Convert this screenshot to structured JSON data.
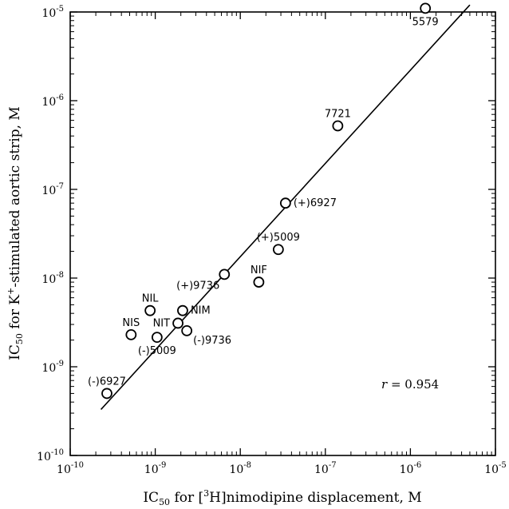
{
  "chart_data": {
    "type": "scatter",
    "title": "",
    "xlabel": {
      "base": "IC",
      "sub": "50",
      "pre": " for [",
      "sup": "3",
      "post": "H]nimodipine displacement, M"
    },
    "ylabel": {
      "base": "IC",
      "sub": "50",
      "pre": " for K",
      "sup": "+",
      "post": "-stimulated aortic strip, M"
    },
    "xscale": "log",
    "yscale": "log",
    "xlim": [
      1e-10,
      1e-05
    ],
    "ylim": [
      1e-10,
      1e-05
    ],
    "xticks": [
      {
        "base": "10",
        "exp": "-10",
        "value": 1e-10
      },
      {
        "base": "10",
        "exp": "-9",
        "value": 1e-09
      },
      {
        "base": "10",
        "exp": "-8",
        "value": 1e-08
      },
      {
        "base": "10",
        "exp": "-7",
        "value": 1e-07
      },
      {
        "base": "10",
        "exp": "-6",
        "value": 1e-06
      },
      {
        "base": "10",
        "exp": "-5",
        "value": 1e-05
      }
    ],
    "yticks": [
      {
        "base": "10",
        "exp": "-10",
        "value": 1e-10
      },
      {
        "base": "10",
        "exp": "-9",
        "value": 1e-09
      },
      {
        "base": "10",
        "exp": "-8",
        "value": 1e-08
      },
      {
        "base": "10",
        "exp": "-7",
        "value": 1e-07
      },
      {
        "base": "10",
        "exp": "-6",
        "value": 1e-06
      },
      {
        "base": "10",
        "exp": "-5",
        "value": 1e-05
      }
    ],
    "grid": false,
    "points": [
      {
        "label": "5579",
        "x": 1.5e-06,
        "y": 1.1e-05,
        "label_pos": "below"
      },
      {
        "label": "7721",
        "x": 1.4e-07,
        "y": 5.2e-07,
        "label_pos": "above"
      },
      {
        "label": "(+)6927",
        "x": 3.4e-08,
        "y": 7e-08,
        "label_pos": "right"
      },
      {
        "label": "(+)5009",
        "x": 2.8e-08,
        "y": 2.1e-08,
        "label_pos": "above"
      },
      {
        "label": "NIF",
        "x": 1.65e-08,
        "y": 9e-09,
        "label_pos": "above"
      },
      {
        "label": "(+)9736",
        "x": 6.5e-09,
        "y": 1.1e-08,
        "label_pos": "below-left"
      },
      {
        "label": "NIL",
        "x": 8.7e-10,
        "y": 4.3e-09,
        "label_pos": "above"
      },
      {
        "label": "NIM",
        "x": 2.1e-09,
        "y": 4.3e-09,
        "label_pos": "right"
      },
      {
        "label": "NIS",
        "x": 5.2e-10,
        "y": 2.3e-09,
        "label_pos": "above"
      },
      {
        "label": "NIT",
        "x": 1.85e-09,
        "y": 3.1e-09,
        "label_pos": "left"
      },
      {
        "label": "(-)5009",
        "x": 1.05e-09,
        "y": 2.15e-09,
        "label_pos": "below"
      },
      {
        "label": "(-)9736",
        "x": 2.35e-09,
        "y": 2.55e-09,
        "label_pos": "below-right"
      },
      {
        "label": "(-)6927",
        "x": 2.7e-10,
        "y": 5e-10,
        "label_pos": "above"
      }
    ],
    "regression_line": {
      "x_start": 2.3e-10,
      "y_start": 3.3e-10,
      "x_end": 5e-06,
      "y_end": 1.2e-05
    },
    "annotation": {
      "italic": "r",
      "text": " = 0.954"
    }
  }
}
